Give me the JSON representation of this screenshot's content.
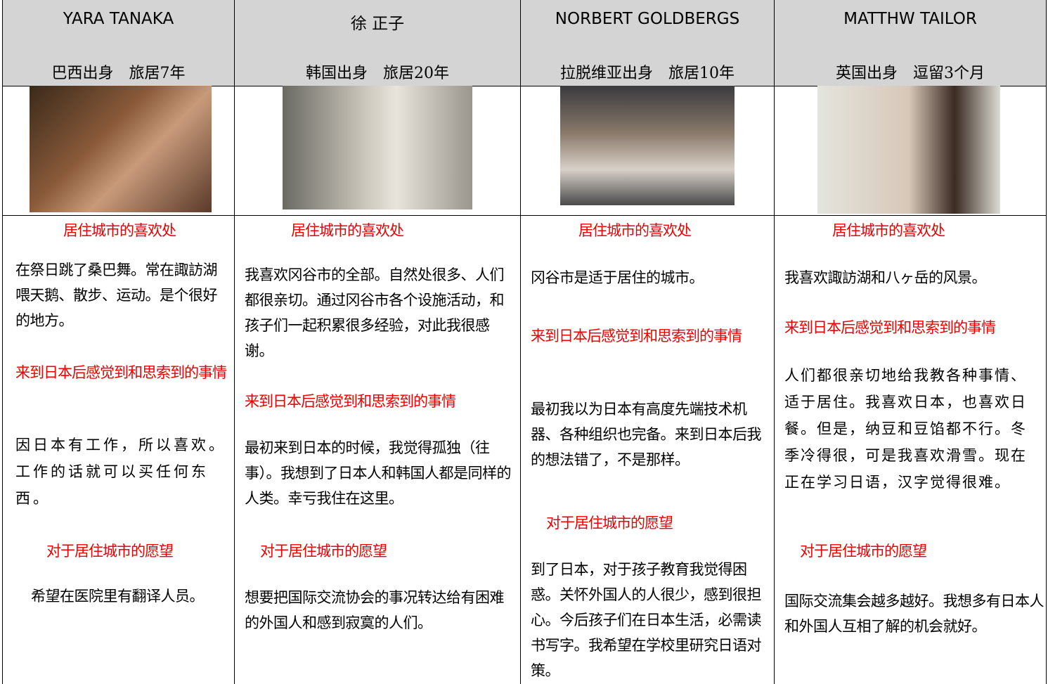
{
  "columns": [
    {
      "name": "YARA TANAKA",
      "origin": "巴西出身　旅居7年",
      "sections": [
        {
          "heading": "居住城市的喜欢处",
          "text": "在祭日跳了桑巴舞。常在諏訪湖喂天鹅、散步、运动。是个很好的地方。"
        },
        {
          "heading": "来到日本后感觉到和思索到的事情",
          "text": "因日本有工作，所以喜欢。工作的话就可以买任何东西。"
        },
        {
          "heading": "对于居住城市的愿望",
          "text": "希望在医院里有翻译人员。"
        }
      ]
    },
    {
      "name": "徐 正子",
      "origin": "韩国出身　旅居20年",
      "sections": [
        {
          "heading": "居住城市的喜欢处",
          "text": "我喜欢冈谷市的全部。自然处很多、人们都很亲切。通过冈谷市各个设施活动，和孩子们一起积累很多经验，对此我很感谢。"
        },
        {
          "heading": "来到日本后感觉到和思索到的事情",
          "text": "最初来到日本的时候，我觉得孤独（往事）。我想到了日本人和韩国人都是同样的人类。幸亏我住在这里。"
        },
        {
          "heading": "对于居住城市的愿望",
          "text": "想要把国际交流协会的事况转达给有困难的外国人和感到寂寞的人们。"
        }
      ]
    },
    {
      "name": "NORBERT GOLDBERGS",
      "origin": "拉脱维亚出身　旅居10年",
      "sections": [
        {
          "heading": "居住城市的喜欢处",
          "text": "冈谷市是适于居住的城市。"
        },
        {
          "heading": "来到日本后感觉到和思索到的事情",
          "text": "最初我以为日本有高度先端技术机器、各种组织也完备。来到日本后我的想法错了，不是那样。"
        },
        {
          "heading": "对于居住城市的愿望",
          "text": "到了日本，对于孩子教育我觉得困惑。关怀外国人的人很少，感到很担心。今后孩子们在日本生活，必需读书写字。我希望在学校里研究日语对策。"
        }
      ]
    },
    {
      "name": "MATTHW TAILOR",
      "origin": "英国出身　逗留3个月",
      "sections": [
        {
          "heading": "居住城市的喜欢处",
          "text": "我喜欢諏訪湖和八ヶ岳的风景。"
        },
        {
          "heading": "来到日本后感觉到和思索到的事情",
          "text": "人们都很亲切地给我教各种事情、适于居住。我喜欢日本，也喜欢日餐。但是，纳豆和豆馅都不行。冬季冷得很，可是我喜欢滑雪。现在正在学习日语，汉字觉得很难。"
        },
        {
          "heading": "对于居住城市的愿望",
          "text": "国际交流集会越多越好。我想多有日本人和外国人互相了解的机会就好。"
        }
      ]
    }
  ]
}
